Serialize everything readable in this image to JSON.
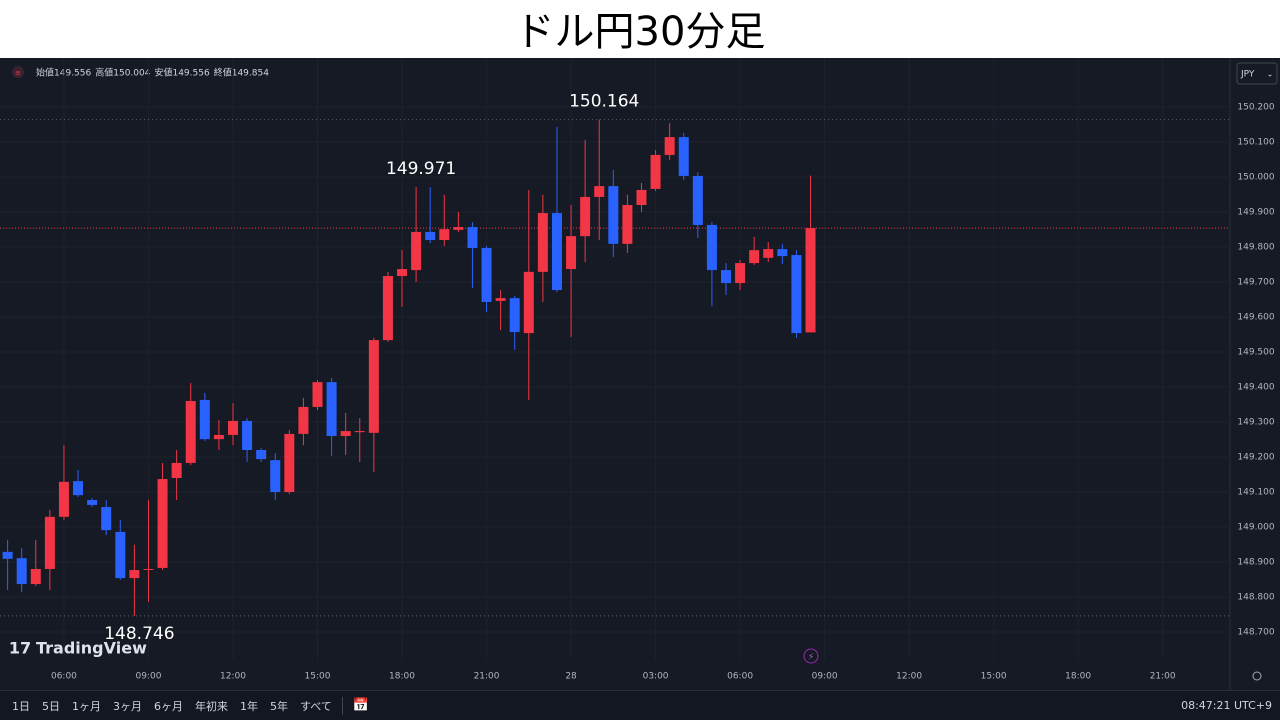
{
  "chart_data": {
    "type": "candlestick",
    "title": "ドル円30分足",
    "ohlc_header": [
      {
        "label": "始値",
        "value": 149.556
      },
      {
        "label": "高値",
        "value": 150.004
      },
      {
        "label": "安値",
        "value": 149.556
      },
      {
        "label": "終値",
        "value": 149.854
      }
    ],
    "currency": "JPY",
    "logo": "TradingView",
    "x": [
      4,
      4.5,
      5,
      5.5,
      6,
      6.5,
      7,
      7.5,
      8,
      8.5,
      9,
      9.5,
      10,
      10.5,
      11,
      11.5,
      12,
      12.5,
      13,
      13.5,
      14,
      14.5,
      15,
      15.5,
      16,
      16.5,
      17,
      17.5,
      18,
      18.5,
      19,
      19.5,
      20,
      20.5,
      21,
      21.5,
      22,
      22.5,
      23,
      23.5,
      24,
      24.5,
      25,
      25.5,
      26,
      26.5,
      27,
      27.5,
      28,
      28.5,
      29,
      29.5,
      30,
      30.5,
      31,
      31.5,
      32,
      32.5
    ],
    "open": [
      148.929,
      148.911,
      148.837,
      148.88,
      149.029,
      149.131,
      149.077,
      149.057,
      148.986,
      148.854,
      148.88,
      148.883,
      149.14,
      149.183,
      149.363,
      149.251,
      149.263,
      149.303,
      149.22,
      149.191,
      149.1,
      149.266,
      149.343,
      149.414,
      149.26,
      149.271,
      149.269,
      149.534,
      149.717,
      149.734,
      149.843,
      149.82,
      149.849,
      149.857,
      149.797,
      149.646,
      149.654,
      149.554,
      149.729,
      149.897,
      149.737,
      149.831,
      149.943,
      149.974,
      149.809,
      149.92,
      149.966,
      150.063,
      150.114,
      150.003,
      149.863,
      149.734,
      149.697,
      149.754,
      149.769,
      149.794,
      149.777,
      149.556
    ],
    "high": [
      148.963,
      148.94,
      148.963,
      149.049,
      149.234,
      149.163,
      149.083,
      149.077,
      149.02,
      148.949,
      149.077,
      149.183,
      149.22,
      149.411,
      149.383,
      149.306,
      149.354,
      149.311,
      149.226,
      149.211,
      149.277,
      149.369,
      149.42,
      149.426,
      149.326,
      149.311,
      149.54,
      149.729,
      149.791,
      149.971,
      149.971,
      149.949,
      149.9,
      149.871,
      149.803,
      149.677,
      149.66,
      149.963,
      149.949,
      150.143,
      149.92,
      150.106,
      150.164,
      150.02,
      149.949,
      149.983,
      150.077,
      150.154,
      150.126,
      150.014,
      149.871,
      149.754,
      149.763,
      149.829,
      149.814,
      149.809,
      149.791,
      150.004
    ],
    "low": [
      148.82,
      148.814,
      148.831,
      148.82,
      149.02,
      149.086,
      149.057,
      148.977,
      148.849,
      148.746,
      148.786,
      148.877,
      149.077,
      149.177,
      149.246,
      149.22,
      149.234,
      149.186,
      149.186,
      149.077,
      149.094,
      149.234,
      149.334,
      149.203,
      149.206,
      149.186,
      149.157,
      149.529,
      149.629,
      149.7,
      149.811,
      149.803,
      149.843,
      149.683,
      149.614,
      149.563,
      149.506,
      149.363,
      149.643,
      149.671,
      149.543,
      149.757,
      149.82,
      149.771,
      149.783,
      149.9,
      149.96,
      150.049,
      149.991,
      149.826,
      149.631,
      149.663,
      149.677,
      149.749,
      149.757,
      149.751,
      149.54,
      149.556
    ],
    "close": [
      148.909,
      148.837,
      148.88,
      149.029,
      149.129,
      149.091,
      149.063,
      148.991,
      148.854,
      148.877,
      148.88,
      149.137,
      149.183,
      149.36,
      149.251,
      149.263,
      149.303,
      149.22,
      149.194,
      149.1,
      149.266,
      149.343,
      149.414,
      149.26,
      149.274,
      149.274,
      149.534,
      149.717,
      149.737,
      149.843,
      149.82,
      149.851,
      149.857,
      149.797,
      149.643,
      149.654,
      149.557,
      149.729,
      149.897,
      149.677,
      149.831,
      149.943,
      149.974,
      149.809,
      149.92,
      149.963,
      150.063,
      150.114,
      150.003,
      149.863,
      149.734,
      149.697,
      149.754,
      149.791,
      149.794,
      149.774,
      149.554,
      149.854
    ],
    "up_color": "#f23645",
    "down_color": "#2962ff",
    "annotations": [
      {
        "x": 25,
        "value": 150.164,
        "position": "above"
      },
      {
        "x": 18.5,
        "value": 149.971,
        "position": "above"
      },
      {
        "x": 8.5,
        "value": 148.746,
        "position": "below"
      }
    ],
    "high_low_lines": true,
    "price_line": true,
    "grid": true,
    "xlim": [
      3.73,
      47.39
    ],
    "xticks": [
      {
        "value": 6,
        "label": "06:00"
      },
      {
        "value": 9,
        "label": "09:00"
      },
      {
        "value": 12,
        "label": "12:00"
      },
      {
        "value": 15,
        "label": "15:00"
      },
      {
        "value": 18,
        "label": "18:00"
      },
      {
        "value": 21,
        "label": "21:00"
      },
      {
        "value": 24,
        "label": "28"
      },
      {
        "value": 27,
        "label": "03:00"
      },
      {
        "value": 30,
        "label": "06:00"
      },
      {
        "value": 33,
        "label": "09:00"
      },
      {
        "value": 36,
        "label": "12:00"
      },
      {
        "value": 39,
        "label": "15:00"
      },
      {
        "value": 42,
        "label": "18:00"
      },
      {
        "value": 45,
        "label": "21:00"
      }
    ],
    "ylim": [
      148.62,
      150.34
    ],
    "yticks": [
      {
        "value": 148.7,
        "label": "148.700"
      },
      {
        "value": 148.8,
        "label": "148.800"
      },
      {
        "value": 148.9,
        "label": "148.900"
      },
      {
        "value": 149.0,
        "label": "149.000"
      },
      {
        "value": 149.1,
        "label": "149.100"
      },
      {
        "value": 149.2,
        "label": "149.200"
      },
      {
        "value": 149.3,
        "label": "149.300"
      },
      {
        "value": 149.4,
        "label": "149.400"
      },
      {
        "value": 149.5,
        "label": "149.500"
      },
      {
        "value": 149.6,
        "label": "149.600"
      },
      {
        "value": 149.7,
        "label": "149.700"
      },
      {
        "value": 149.8,
        "label": "149.800"
      },
      {
        "value": 149.9,
        "label": "149.900"
      },
      {
        "value": 150.0,
        "label": "150.000"
      },
      {
        "value": 150.1,
        "label": "150.100"
      },
      {
        "value": 150.2,
        "label": "150.200"
      }
    ],
    "ranges": [
      "1日",
      "5日",
      "1ヶ月",
      "3ヶ月",
      "6ヶ月",
      "年初来",
      "1年",
      "5年",
      "すべて"
    ],
    "clock": "08:47:21 UTC+9"
  }
}
